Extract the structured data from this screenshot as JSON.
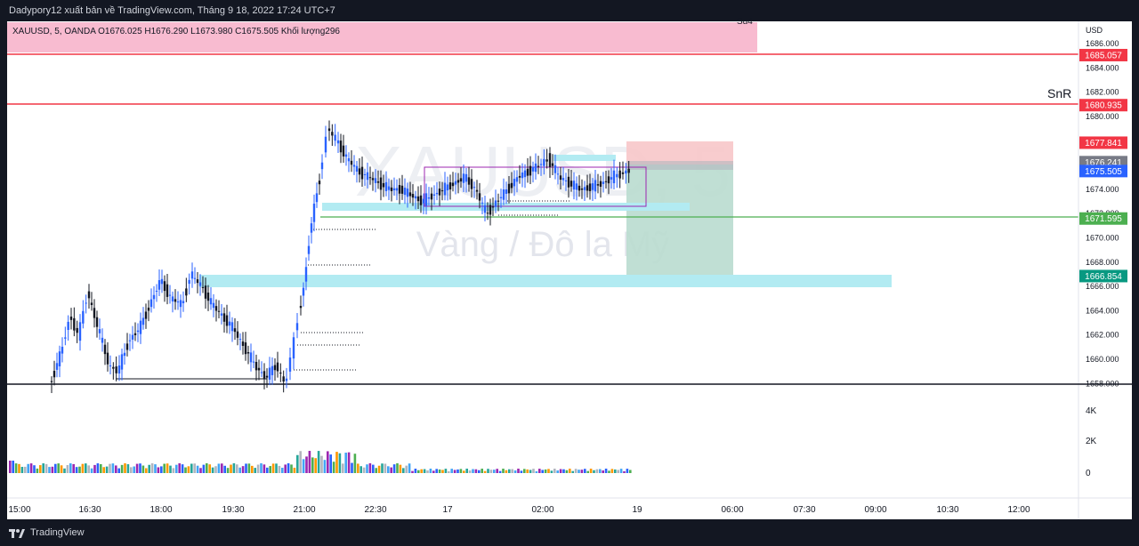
{
  "header": {
    "publish_text": "Dadypory12 xuất bản về TradingView.com, Tháng 9 18, 2022 17:24 UTC+7"
  },
  "legend": {
    "text": "XAUUSD, 5, OANDA  O1676.025  H1676.290  L1673.980  C1675.505  Khối lượng296"
  },
  "watermark": {
    "symbol": "XAUUSD, 5",
    "name": "Vàng / Đô la Mỹ"
  },
  "annotations": {
    "su4": "Su4",
    "snr": "SnR"
  },
  "footer": {
    "logo_text": "TradingView"
  },
  "colors": {
    "background": "#131722",
    "panel": "#ffffff",
    "up": "#2962ff",
    "down": "#131722",
    "red_line": "#f23645",
    "green_line": "#4caf50",
    "zone_pink": "#f8bbd0",
    "zone_cyan": "#b2ebf2",
    "tp_zone": "#b9dccf",
    "sl_zone": "#f7c6c9"
  },
  "chart_data": {
    "type": "candlestick",
    "symbol": "XAUUSD",
    "interval": "5",
    "exchange": "OANDA",
    "ohlc_last": {
      "open": 1676.025,
      "high": 1676.29,
      "low": 1673.98,
      "close": 1675.505,
      "volume": 296
    },
    "currency": "USD",
    "price_ticks": [
      "1686.000",
      "1684.000",
      "1682.000",
      "1680.000",
      "1678.000",
      "1676.000",
      "1674.000",
      "1672.000",
      "1670.000",
      "1668.000",
      "1666.000",
      "1664.000",
      "1662.000",
      "1660.000",
      "1658.000"
    ],
    "time_ticks": [
      "15:00",
      "16:30",
      "18:00",
      "19:30",
      "21:00",
      "22:30",
      "17",
      "02:00",
      "19",
      "06:00",
      "07:30",
      "09:00",
      "10:30",
      "12:00"
    ],
    "volume_ticks": [
      "4K",
      "2K",
      "0"
    ],
    "price_labels": [
      {
        "text": "1685.057",
        "color": "#f23645"
      },
      {
        "text": "1680.935",
        "color": "#f23645"
      },
      {
        "text": "1677.841",
        "color": "#f23645"
      },
      {
        "text": "1676.241",
        "color": "#787b86"
      },
      {
        "text": "1675.505",
        "color": "#2962ff"
      },
      {
        "text": "1671.595",
        "color": "#4caf50"
      },
      {
        "text": "1666.854",
        "color": "#089981"
      }
    ],
    "horizontal_lines": [
      {
        "price": 1685.057,
        "color": "red"
      },
      {
        "price": 1680.935,
        "color": "red"
      },
      {
        "price": 1671.595,
        "color": "green"
      }
    ],
    "grid": false
  }
}
